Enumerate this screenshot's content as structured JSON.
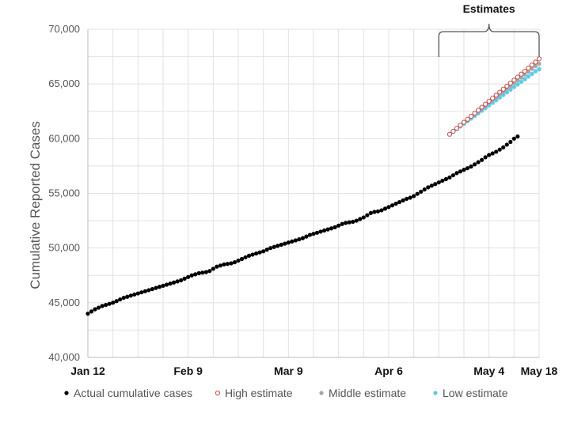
{
  "chart_data": {
    "type": "scatter",
    "ylabel": "Cumulative Reported Cases",
    "ylim": [
      40000,
      70000
    ],
    "yticks": [
      40000,
      45000,
      50000,
      55000,
      60000,
      65000,
      70000
    ],
    "ytick_labels": [
      "40,000",
      "45,000",
      "50,000",
      "55,000",
      "60,000",
      "65,000",
      "70,000"
    ],
    "x_range_days": [
      0,
      126
    ],
    "x_ticks": [
      {
        "day": 0,
        "label": "Jan 12"
      },
      {
        "day": 28,
        "label": "Feb 9"
      },
      {
        "day": 56,
        "label": "Mar 9"
      },
      {
        "day": 84,
        "label": "Apr 6"
      },
      {
        "day": 112,
        "label": "May 4"
      },
      {
        "day": 126,
        "label": "May 18"
      }
    ],
    "grid": true,
    "annotation": {
      "label": "Estimates",
      "from_day": 98,
      "to_day": 126
    },
    "legend_position": "bottom",
    "series": [
      {
        "name": "Actual cumulative cases",
        "marker": "filled",
        "color": "#000000",
        "x_start_day": 0,
        "x_step_days": 1,
        "values": [
          44000,
          44200,
          44400,
          44550,
          44700,
          44800,
          44900,
          45000,
          45150,
          45300,
          45450,
          45550,
          45650,
          45750,
          45850,
          45950,
          46050,
          46150,
          46250,
          46350,
          46450,
          46550,
          46650,
          46750,
          46850,
          46950,
          47050,
          47200,
          47350,
          47500,
          47600,
          47700,
          47750,
          47800,
          47900,
          48100,
          48300,
          48400,
          48500,
          48550,
          48600,
          48700,
          48850,
          49000,
          49150,
          49300,
          49400,
          49500,
          49600,
          49700,
          49850,
          50000,
          50100,
          50200,
          50300,
          50400,
          50500,
          50600,
          50700,
          50800,
          50900,
          51050,
          51200,
          51300,
          51400,
          51500,
          51600,
          51700,
          51800,
          51900,
          52050,
          52200,
          52300,
          52350,
          52400,
          52500,
          52650,
          52800,
          53000,
          53200,
          53300,
          53350,
          53450,
          53600,
          53750,
          53900,
          54050,
          54200,
          54350,
          54500,
          54600,
          54750,
          54950,
          55150,
          55350,
          55550,
          55700,
          55850,
          56000,
          56150,
          56300,
          56450,
          56650,
          56850,
          57000,
          57150,
          57300,
          57450,
          57650,
          57850,
          58050,
          58300,
          58500,
          58650,
          58800,
          59000,
          59200,
          59450,
          59700,
          60000,
          60200
        ]
      },
      {
        "name": "High estimate",
        "marker": "hollow",
        "color": "#c0504d",
        "x_start_day": 101,
        "x_step_days": 1,
        "values": [
          60400,
          60675,
          60950,
          61225,
          61500,
          61775,
          62050,
          62325,
          62600,
          62875,
          63150,
          63425,
          63700,
          63975,
          64250,
          64525,
          64800,
          65075,
          65350,
          65625,
          65900,
          66175,
          66450,
          66725,
          67000,
          67300
        ]
      },
      {
        "name": "Middle estimate",
        "marker": "filled",
        "color": "#a6a6a6",
        "x_start_day": 101,
        "x_step_days": 1,
        "values": [
          60400,
          60660,
          60920,
          61180,
          61440,
          61700,
          61960,
          62220,
          62480,
          62740,
          63000,
          63260,
          63520,
          63780,
          64040,
          64300,
          64560,
          64820,
          65080,
          65340,
          65600,
          65860,
          66120,
          66380,
          66640,
          66850
        ]
      },
      {
        "name": "Low estimate",
        "marker": "filled",
        "color": "#5bc8e8",
        "x_start_day": 101,
        "x_step_days": 1,
        "values": [
          60400,
          60640,
          60880,
          61120,
          61360,
          61600,
          61840,
          62080,
          62320,
          62560,
          62800,
          63040,
          63280,
          63520,
          63760,
          64000,
          64240,
          64480,
          64720,
          64960,
          65200,
          65440,
          65680,
          65920,
          66160,
          66350
        ]
      }
    ]
  }
}
